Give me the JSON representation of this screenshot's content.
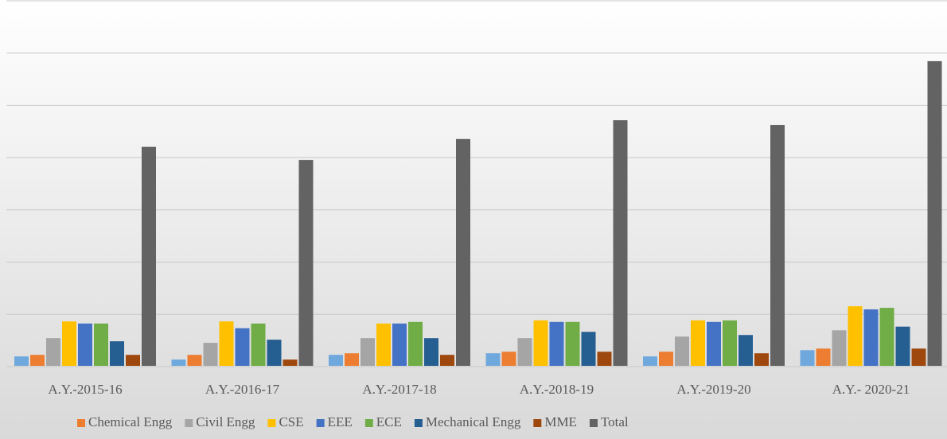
{
  "chart_data": {
    "type": "bar",
    "categories": [
      "A.Y.-2015-16",
      "A.Y.-2016-17",
      "A.Y.-2017-18",
      "A.Y.-2018-19",
      "A.Y.-2019-20",
      "A.Y.- 2020-21"
    ],
    "series": [
      {
        "name": null,
        "color": "#6fa8dc",
        "values": [
          0.18,
          0.12,
          0.21,
          0.24,
          0.18,
          0.3
        ]
      },
      {
        "name": "Chemical Engg",
        "color": "#ed7d31",
        "values": [
          0.21,
          0.21,
          0.24,
          0.27,
          0.27,
          0.33
        ]
      },
      {
        "name": "Civil Engg",
        "color": "#a5a5a5",
        "values": [
          0.53,
          0.44,
          0.53,
          0.53,
          0.56,
          0.68
        ]
      },
      {
        "name": "CSE",
        "color": "#ffc000",
        "values": [
          0.85,
          0.85,
          0.81,
          0.87,
          0.87,
          1.14
        ]
      },
      {
        "name": "EEE",
        "color": "#4472c4",
        "values": [
          0.81,
          0.72,
          0.81,
          0.84,
          0.84,
          1.08
        ]
      },
      {
        "name": "ECE",
        "color": "#70ad47",
        "values": [
          0.81,
          0.81,
          0.84,
          0.84,
          0.87,
          1.11
        ]
      },
      {
        "name": "Mechanical Engg",
        "color": "#255e91",
        "values": [
          0.47,
          0.5,
          0.53,
          0.65,
          0.59,
          0.75
        ]
      },
      {
        "name": "MME",
        "color": "#9e480e",
        "values": [
          0.21,
          0.12,
          0.21,
          0.27,
          0.24,
          0.33
        ]
      },
      {
        "name": "Total",
        "color": "#636363",
        "values": [
          4.19,
          3.94,
          4.34,
          4.7,
          4.61,
          5.83
        ]
      }
    ],
    "ylim": [
      0,
      7
    ],
    "yticks": [
      0,
      1,
      2,
      3,
      4,
      5,
      6,
      7
    ],
    "grid": true,
    "legend": "bottom"
  }
}
